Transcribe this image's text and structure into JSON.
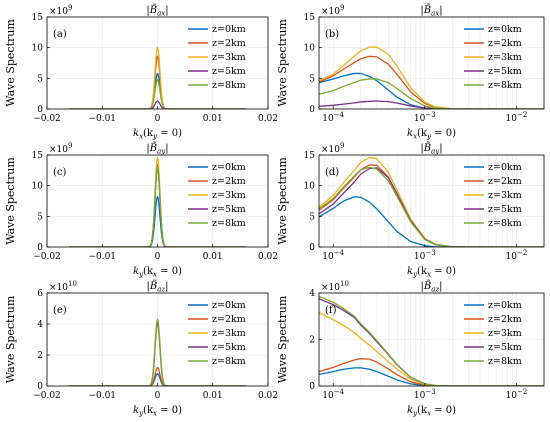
{
  "ylabel": "Wave Spectrum",
  "colors": [
    "#0072BD",
    "#D95319",
    "#EDB120",
    "#7E2F8E",
    "#77AC30"
  ],
  "chart_data": [
    {
      "id": "a",
      "panel_label": "(a)",
      "title": "|B̃ax|",
      "title_sub": "ax",
      "type": "line",
      "xscale": "linear",
      "xlabel": "kx(ky = 0)",
      "xlabel_main": "k",
      "xlabel_sub": "x",
      "xlabel_rest": "(k",
      "xlabel_sub2": "y",
      "xlabel_tail": " = 0)",
      "xlim": [
        -0.02,
        0.02
      ],
      "xticks": [
        -0.02,
        -0.01,
        0,
        0.01,
        0.02
      ],
      "xtick_labels": [
        "−0.02",
        "−0.01",
        "0",
        "0.01",
        "0.02"
      ],
      "ylim": [
        0,
        15
      ],
      "yticks": [
        0,
        5,
        10,
        15
      ],
      "ytick_labels": [
        "0",
        "5",
        "10",
        "15"
      ],
      "multiplier": "×10",
      "multiplier_exp": "9",
      "legend": [
        "z=0km",
        "z=2km",
        "z=3km",
        "z=5km",
        "z=8km"
      ],
      "series": [
        {
          "name": "z=0km",
          "peak": 5.8
        },
        {
          "name": "z=2km",
          "peak": 8.6
        },
        {
          "name": "z=3km",
          "peak": 10.1
        },
        {
          "name": "z=5km",
          "peak": 1.3
        },
        {
          "name": "z=8km",
          "peak": 4.8
        }
      ],
      "x_range": [
        -0.016,
        0.016
      ]
    },
    {
      "id": "b",
      "panel_label": "(b)",
      "title": "|B̃ax|",
      "title_sub": "ax",
      "type": "line",
      "xscale": "log",
      "xlabel": "kx(ky = 0)",
      "xlabel_main": "k",
      "xlabel_sub": "x",
      "xlabel_rest": "(k",
      "xlabel_sub2": "y",
      "xlabel_tail": " = 0)",
      "xlim": [
        7e-05,
        0.02
      ],
      "xticks": [
        0.0001,
        0.001,
        0.01
      ],
      "xtick_labels": [
        "10",
        "10",
        "10"
      ],
      "xtick_exps": [
        "−4",
        "−3",
        "−2"
      ],
      "ylim": [
        0,
        15
      ],
      "yticks": [
        0,
        5,
        10,
        15
      ],
      "ytick_labels": [
        "0",
        "5",
        "10",
        "15"
      ],
      "multiplier": "×10",
      "multiplier_exp": "9",
      "legend": [
        "z=0km",
        "z=2km",
        "z=3km",
        "z=5km",
        "z=8km"
      ],
      "series": [
        {
          "name": "z=0km",
          "x": [
            7e-05,
            0.0001,
            0.00013,
            0.00017,
            0.0002,
            0.00025,
            0.0003,
            0.0004,
            0.0005,
            0.0007,
            0.001,
            0.0013,
            0.002,
            0.003,
            0.005,
            0.01,
            0.02
          ],
          "y": [
            4.3,
            4.9,
            5.4,
            5.8,
            5.8,
            5.3,
            4.6,
            3.1,
            1.9,
            0.7,
            0.15,
            0.03,
            0,
            0,
            0,
            0,
            0
          ]
        },
        {
          "name": "z=2km",
          "x": [
            7e-05,
            0.0001,
            0.00013,
            0.00017,
            0.0002,
            0.00025,
            0.0003,
            0.0004,
            0.0005,
            0.0007,
            0.001,
            0.0013,
            0.002,
            0.003,
            0.005,
            0.01,
            0.02
          ],
          "y": [
            4.4,
            5.4,
            6.5,
            7.6,
            8.2,
            8.6,
            8.5,
            7.3,
            5.6,
            2.8,
            0.9,
            0.3,
            0.02,
            0,
            0,
            0,
            0
          ]
        },
        {
          "name": "z=3km",
          "x": [
            7e-05,
            0.0001,
            0.00013,
            0.00017,
            0.0002,
            0.00025,
            0.0003,
            0.0004,
            0.0005,
            0.0007,
            0.001,
            0.0013,
            0.002,
            0.003,
            0.005,
            0.01,
            0.02
          ],
          "y": [
            4.6,
            5.7,
            7.1,
            8.6,
            9.5,
            10.1,
            10.1,
            8.9,
            6.9,
            3.5,
            1.1,
            0.35,
            0.03,
            0,
            0,
            0,
            0
          ]
        },
        {
          "name": "z=5km",
          "x": [
            7e-05,
            0.0001,
            0.00013,
            0.00017,
            0.0002,
            0.00025,
            0.0003,
            0.0004,
            0.0005,
            0.0007,
            0.001,
            0.0013,
            0.002,
            0.003,
            0.005,
            0.01,
            0.02
          ],
          "y": [
            0.45,
            0.6,
            0.8,
            1.0,
            1.15,
            1.25,
            1.3,
            1.2,
            0.95,
            0.5,
            0.15,
            0.05,
            0,
            0,
            0,
            0,
            0
          ]
        },
        {
          "name": "z=8km",
          "x": [
            7e-05,
            0.0001,
            0.00013,
            0.00017,
            0.0002,
            0.00025,
            0.0003,
            0.0004,
            0.0005,
            0.0007,
            0.001,
            0.0013,
            0.002,
            0.003,
            0.005,
            0.01,
            0.02
          ],
          "y": [
            2.4,
            3.0,
            3.7,
            4.3,
            4.7,
            4.9,
            4.9,
            4.3,
            3.3,
            1.7,
            0.5,
            0.15,
            0.01,
            0,
            0,
            0,
            0
          ]
        }
      ]
    },
    {
      "id": "c",
      "panel_label": "(c)",
      "title": "|B̃ay|",
      "title_sub": "ay",
      "type": "line",
      "xscale": "linear",
      "xlabel": "ky(kx = 0)",
      "xlabel_main": "k",
      "xlabel_sub": "y",
      "xlabel_rest": "(k",
      "xlabel_sub2": "x",
      "xlabel_tail": " = 0)",
      "xlim": [
        -0.02,
        0.02
      ],
      "xticks": [
        -0.02,
        -0.01,
        0,
        0.01,
        0.02
      ],
      "xtick_labels": [
        "−0.02",
        "−0.01",
        "0",
        "0.01",
        "0.02"
      ],
      "ylim": [
        0,
        15
      ],
      "yticks": [
        0,
        5,
        10,
        15
      ],
      "ytick_labels": [
        "0",
        "5",
        "10",
        "15"
      ],
      "multiplier": "×10",
      "multiplier_exp": "9",
      "legend": [
        "z=0km",
        "z=2km",
        "z=3km",
        "z=5km",
        "z=8km"
      ],
      "series": [
        {
          "name": "z=0km",
          "peak": 8.2
        },
        {
          "name": "z=2km",
          "peak": 13.4
        },
        {
          "name": "z=3km",
          "peak": 14.6
        },
        {
          "name": "z=5km",
          "peak": 12.9
        },
        {
          "name": "z=8km",
          "peak": 13.0
        }
      ],
      "x_range": [
        -0.016,
        0.016
      ]
    },
    {
      "id": "d",
      "panel_label": "(d)",
      "title": "|B̃ay|",
      "title_sub": "ay",
      "type": "line",
      "xscale": "log",
      "xlabel": "ky(kx = 0)",
      "xlabel_main": "k",
      "xlabel_sub": "y",
      "xlabel_rest": "(k",
      "xlabel_sub2": "x",
      "xlabel_tail": " = 0)",
      "xlim": [
        7e-05,
        0.02
      ],
      "xticks": [
        0.0001,
        0.001,
        0.01
      ],
      "xtick_labels": [
        "10",
        "10",
        "10"
      ],
      "xtick_exps": [
        "−4",
        "−3",
        "−2"
      ],
      "ylim": [
        0,
        15
      ],
      "yticks": [
        0,
        5,
        10,
        15
      ],
      "ytick_labels": [
        "0",
        "5",
        "10",
        "15"
      ],
      "multiplier": "×10",
      "multiplier_exp": "9",
      "legend": [
        "z=0km",
        "z=2km",
        "z=3km",
        "z=5km",
        "z=8km"
      ],
      "series": [
        {
          "name": "z=0km",
          "x": [
            7e-05,
            0.0001,
            0.00013,
            0.00017,
            0.0002,
            0.00025,
            0.0003,
            0.0004,
            0.0005,
            0.0007,
            0.001,
            0.0013,
            0.002,
            0.003,
            0.005,
            0.01,
            0.02
          ],
          "y": [
            4.9,
            6.3,
            7.5,
            8.2,
            8.1,
            7.3,
            6.2,
            4.1,
            2.5,
            0.9,
            0.2,
            0.04,
            0,
            0,
            0,
            0,
            0
          ]
        },
        {
          "name": "z=2km",
          "x": [
            7e-05,
            0.0001,
            0.00013,
            0.00017,
            0.0002,
            0.00025,
            0.0003,
            0.0004,
            0.0005,
            0.0007,
            0.001,
            0.0013,
            0.002,
            0.003,
            0.005,
            0.01,
            0.02
          ],
          "y": [
            6.0,
            7.7,
            9.6,
            11.4,
            12.6,
            13.4,
            13.3,
            11.4,
            8.6,
            4.3,
            1.3,
            0.4,
            0.03,
            0,
            0,
            0,
            0
          ]
        },
        {
          "name": "z=3km",
          "x": [
            7e-05,
            0.0001,
            0.00013,
            0.00017,
            0.0002,
            0.00025,
            0.0003,
            0.0004,
            0.0005,
            0.0007,
            0.001,
            0.0013,
            0.002,
            0.003,
            0.005,
            0.01,
            0.02
          ],
          "y": [
            6.5,
            8.4,
            10.5,
            12.5,
            13.8,
            14.6,
            14.4,
            12.2,
            9.2,
            4.6,
            1.4,
            0.45,
            0.03,
            0,
            0,
            0,
            0
          ]
        },
        {
          "name": "z=5km",
          "x": [
            7e-05,
            0.0001,
            0.00013,
            0.00017,
            0.0002,
            0.00025,
            0.0003,
            0.0004,
            0.0005,
            0.0007,
            0.001,
            0.0013,
            0.002,
            0.003,
            0.005,
            0.01,
            0.02
          ],
          "y": [
            5.4,
            7.0,
            8.8,
            10.6,
            11.9,
            12.8,
            12.9,
            11.3,
            8.6,
            4.3,
            1.3,
            0.4,
            0.03,
            0,
            0,
            0,
            0
          ]
        },
        {
          "name": "z=8km",
          "x": [
            7e-05,
            0.0001,
            0.00013,
            0.00017,
            0.0002,
            0.00025,
            0.0003,
            0.0004,
            0.0005,
            0.0007,
            0.001,
            0.0013,
            0.002,
            0.003,
            0.005,
            0.01,
            0.02
          ],
          "y": [
            6.2,
            7.9,
            9.8,
            11.6,
            12.6,
            13.0,
            12.7,
            10.8,
            8.2,
            4.1,
            1.2,
            0.38,
            0.03,
            0,
            0,
            0,
            0
          ]
        }
      ]
    },
    {
      "id": "e",
      "panel_label": "(e)",
      "title": "|B̃az|",
      "title_sub": "az",
      "type": "line",
      "xscale": "linear",
      "xlabel": "ky(kx = 0)",
      "xlabel_main": "k",
      "xlabel_sub": "y",
      "xlabel_rest": "(k",
      "xlabel_sub2": "x",
      "xlabel_tail": " = 0)",
      "xlim": [
        -0.02,
        0.02
      ],
      "xticks": [
        -0.02,
        -0.01,
        0,
        0.01,
        0.02
      ],
      "xtick_labels": [
        "−0.02",
        "−0.01",
        "0",
        "0.01",
        "0.02"
      ],
      "ylim": [
        0,
        6
      ],
      "yticks": [
        0,
        2,
        4,
        6
      ],
      "ytick_labels": [
        "0",
        "2",
        "4",
        "6"
      ],
      "multiplier": "×10",
      "multiplier_exp": "10",
      "legend": [
        "z=0km",
        "z=2km",
        "z=3km",
        "z=5km",
        "z=8km"
      ],
      "series": [
        {
          "name": "z=0km",
          "peak": 0.8
        },
        {
          "name": "z=2km",
          "peak": 1.2
        },
        {
          "name": "z=3km",
          "peak": 4.0
        },
        {
          "name": "z=5km",
          "peak": 4.1
        },
        {
          "name": "z=8km",
          "peak": 4.3
        }
      ],
      "x_range": [
        -0.016,
        0.016
      ]
    },
    {
      "id": "f",
      "panel_label": "(f)",
      "title": "|B̃az|",
      "title_sub": "az",
      "type": "line",
      "xscale": "log",
      "xlabel": "ky(kx = 0)",
      "xlabel_main": "k",
      "xlabel_sub": "y",
      "xlabel_rest": "(k",
      "xlabel_sub2": "x",
      "xlabel_tail": " = 0)",
      "xlim": [
        7e-05,
        0.02
      ],
      "xticks": [
        0.0001,
        0.001,
        0.01
      ],
      "xtick_labels": [
        "10",
        "10",
        "10"
      ],
      "xtick_exps": [
        "−4",
        "−3",
        "−2"
      ],
      "ylim": [
        0,
        4
      ],
      "yticks": [
        0,
        2,
        4
      ],
      "ytick_labels": [
        "0",
        "2",
        "4"
      ],
      "multiplier": "×10",
      "multiplier_exp": "10",
      "legend": [
        "z=0km",
        "z=2km",
        "z=3km",
        "z=5km",
        "z=8km"
      ],
      "series": [
        {
          "name": "z=0km",
          "x": [
            7e-05,
            0.0001,
            0.00013,
            0.00017,
            0.0002,
            0.00025,
            0.0003,
            0.0004,
            0.0005,
            0.0007,
            0.001,
            0.0013,
            0.002,
            0.003,
            0.005,
            0.01,
            0.02
          ],
          "y": [
            0.5,
            0.62,
            0.72,
            0.78,
            0.78,
            0.72,
            0.62,
            0.42,
            0.26,
            0.09,
            0.02,
            0,
            0,
            0,
            0,
            0,
            0
          ]
        },
        {
          "name": "z=2km",
          "x": [
            7e-05,
            0.0001,
            0.00013,
            0.00017,
            0.0002,
            0.00025,
            0.0003,
            0.0004,
            0.0005,
            0.0007,
            0.001,
            0.0013,
            0.002,
            0.003,
            0.005,
            0.01,
            0.02
          ],
          "y": [
            0.62,
            0.8,
            0.97,
            1.12,
            1.18,
            1.15,
            1.03,
            0.73,
            0.48,
            0.18,
            0.04,
            0.01,
            0,
            0,
            0,
            0,
            0
          ]
        },
        {
          "name": "z=3km",
          "x": [
            7e-05,
            0.0001,
            0.00013,
            0.00017,
            0.0002,
            0.00025,
            0.0003,
            0.0004,
            0.0005,
            0.0007,
            0.001,
            0.0013,
            0.002,
            0.003,
            0.005,
            0.01,
            0.02
          ],
          "y": [
            3.15,
            2.85,
            2.6,
            2.3,
            2.05,
            1.75,
            1.48,
            1.05,
            0.72,
            0.3,
            0.07,
            0.02,
            0,
            0,
            0,
            0,
            0
          ]
        },
        {
          "name": "z=5km",
          "x": [
            7e-05,
            0.0001,
            0.00013,
            0.00017,
            0.0002,
            0.00025,
            0.0003,
            0.0004,
            0.0005,
            0.0007,
            0.001,
            0.0013,
            0.002,
            0.003,
            0.005,
            0.01,
            0.02
          ],
          "y": [
            3.75,
            3.5,
            3.25,
            2.95,
            2.62,
            2.25,
            1.9,
            1.35,
            0.9,
            0.37,
            0.09,
            0.02,
            0,
            0,
            0,
            0,
            0
          ]
        },
        {
          "name": "z=8km",
          "x": [
            7e-05,
            0.0001,
            0.00013,
            0.00017,
            0.0002,
            0.00025,
            0.0003,
            0.0004,
            0.0005,
            0.0007,
            0.001,
            0.0013,
            0.002,
            0.003,
            0.005,
            0.01,
            0.02
          ],
          "y": [
            3.85,
            3.6,
            3.33,
            3.0,
            2.68,
            2.3,
            1.95,
            1.38,
            0.92,
            0.38,
            0.09,
            0.02,
            0,
            0,
            0,
            0,
            0
          ]
        }
      ]
    }
  ]
}
